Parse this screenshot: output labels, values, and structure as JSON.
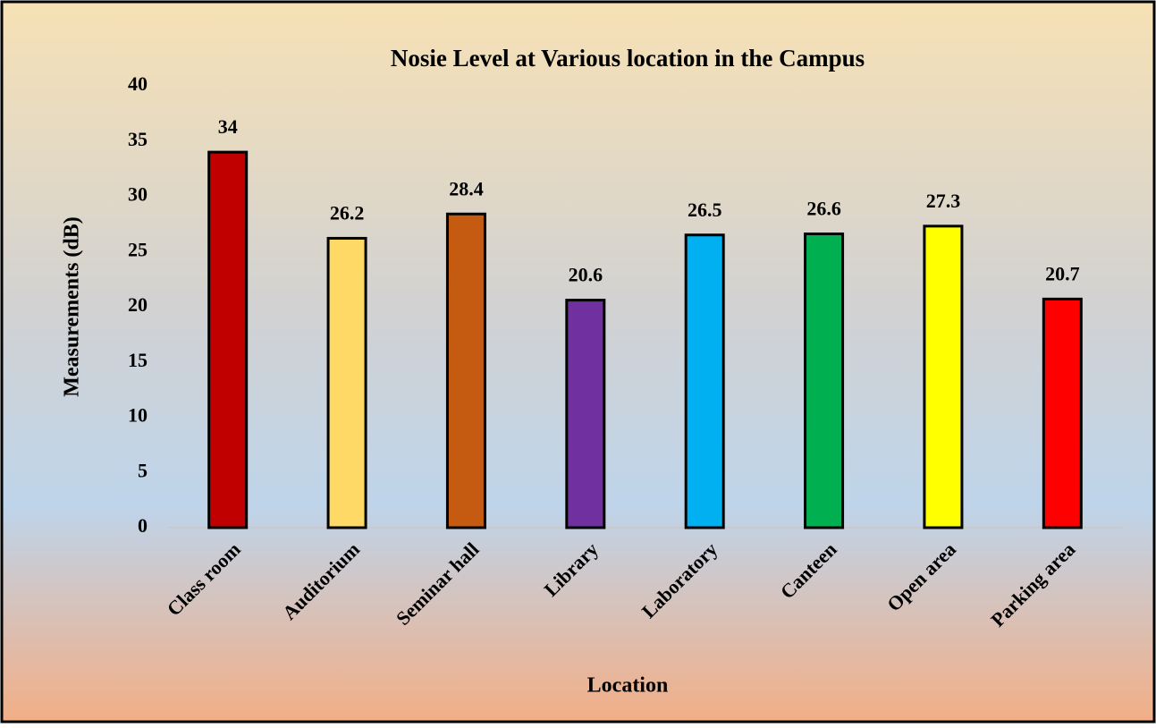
{
  "chart_data": {
    "type": "bar",
    "title": "Nosie Level at Various location in the Campus",
    "x_label": "Location",
    "y_label": "Measurements (dB)",
    "categories": [
      "Class room",
      "Auditorium",
      "Seminar hall",
      "Library",
      "Laboratory",
      "Canteen",
      "Open area",
      "Parking area"
    ],
    "values": [
      34,
      26.2,
      28.4,
      20.6,
      26.5,
      26.6,
      27.3,
      20.7
    ],
    "colors": [
      "#c00000",
      "#ffd966",
      "#c55a11",
      "#7030a0",
      "#00b0f0",
      "#00b050",
      "#ffff00",
      "#ff0000"
    ],
    "ylim": [
      0,
      40
    ],
    "yticks": [
      0,
      5,
      10,
      15,
      20,
      25,
      30,
      35,
      40
    ],
    "grid": false
  }
}
